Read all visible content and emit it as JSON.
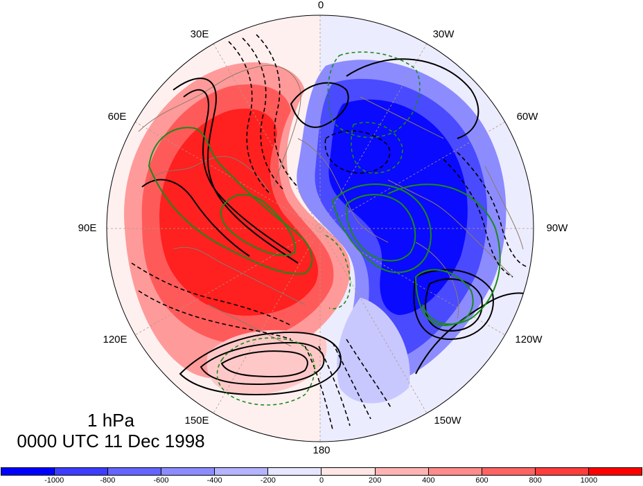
{
  "longitude_labels": {
    "lon_0": "0",
    "lon_30w": "30W",
    "lon_60w": "60W",
    "lon_90w": "90W",
    "lon_120w": "120W",
    "lon_150w": "150W",
    "lon_180": "180",
    "lon_150e": "150E",
    "lon_120e": "120E",
    "lon_90e": "90E",
    "lon_60e": "60E",
    "lon_30e": "30E"
  },
  "title": {
    "level": "1 hPa",
    "time": "0000 UTC 11 Dec 1998"
  },
  "colorbar": {
    "colors": [
      "#0000ff",
      "#3d3dff",
      "#6464ff",
      "#8c8cff",
      "#b4b4ff",
      "#e6e6ff",
      "#ffe6e6",
      "#ffb4b4",
      "#ff8c8c",
      "#ff6464",
      "#ff3d3d",
      "#ff0000"
    ],
    "tick_labels": [
      "-1000",
      "-800",
      "-600",
      "-400",
      "-200",
      "0",
      "200",
      "400",
      "600",
      "800",
      "1000"
    ]
  },
  "colors": {
    "contour_line": "#000000",
    "green_contour": "#1a8a1a",
    "coastline": "#8c7a6a",
    "grid_line": "#b09a80"
  }
}
